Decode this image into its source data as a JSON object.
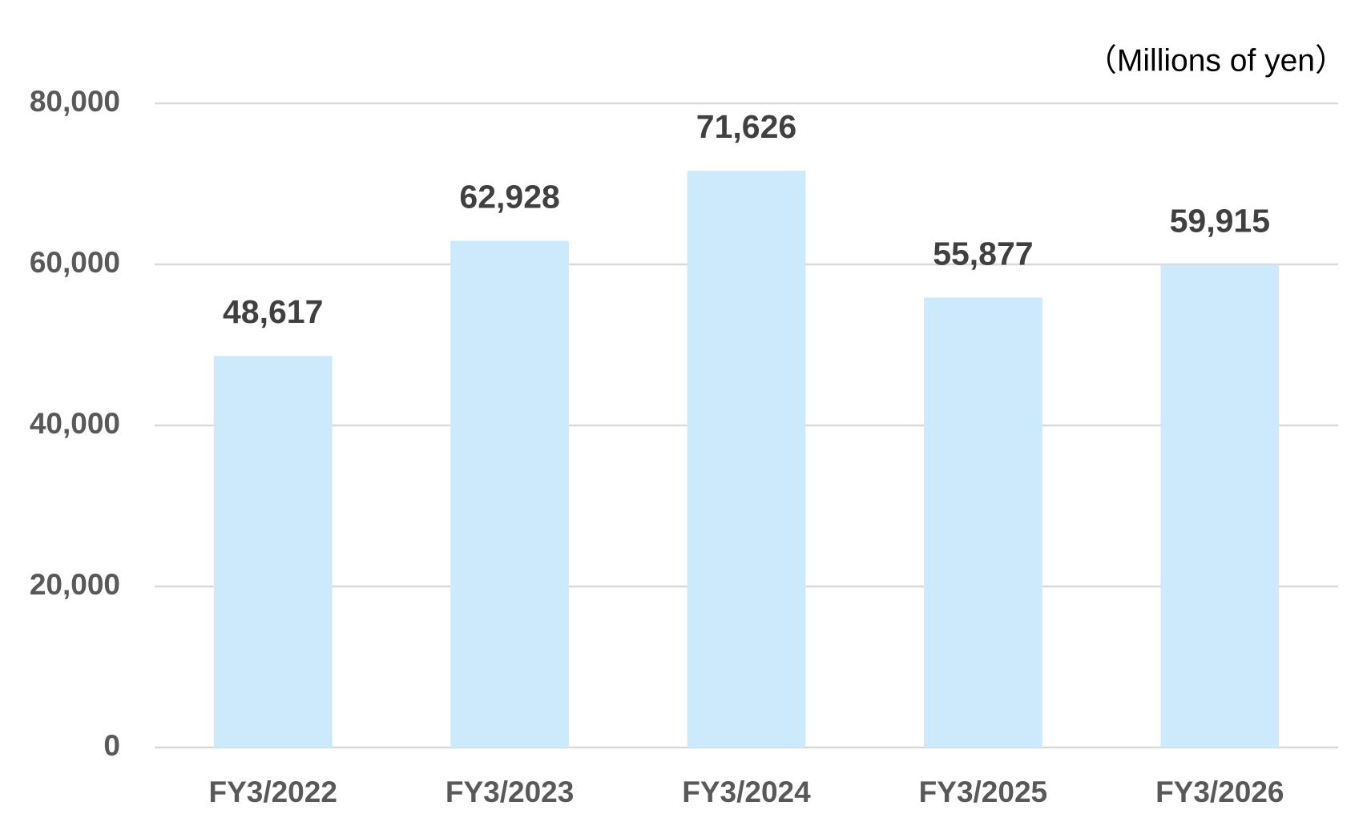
{
  "chart_data": {
    "type": "bar",
    "unit_label": "（Millions of yen）",
    "categories": [
      "FY3/2022",
      "FY3/2023",
      "FY3/2024",
      "FY3/2025",
      "FY3/2026"
    ],
    "values": [
      48617,
      62928,
      71626,
      55877,
      59915
    ],
    "value_labels": [
      "48,617",
      "62,928",
      "71,626",
      "55,877",
      "59,915"
    ],
    "color": "#cceafb",
    "ylim": [
      0,
      80000
    ],
    "yticks": [
      0,
      {
        "value": 20000,
        "label": "20,000"
      },
      {
        "value": 40000,
        "label": "40,000"
      },
      {
        "value": 60000,
        "label": "60,000"
      },
      {
        "value": 80000,
        "label": "80,000"
      }
    ],
    "grid": true
  }
}
